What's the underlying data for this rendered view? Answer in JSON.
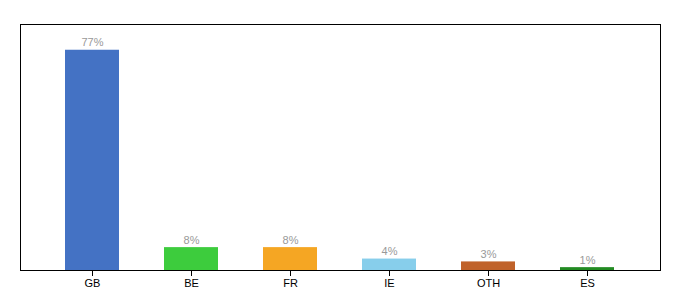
{
  "chart_data": {
    "type": "bar",
    "categories": [
      "GB",
      "BE",
      "FR",
      "IE",
      "OTH",
      "ES"
    ],
    "values": [
      77,
      8,
      8,
      4,
      3,
      1
    ],
    "value_labels": [
      "77%",
      "8%",
      "8%",
      "4%",
      "3%",
      "1%"
    ],
    "data_labels": true,
    "colors": [
      "#4472c4",
      "#3dcc3d",
      "#f5a623",
      "#87ceeb",
      "#c0622a",
      "#228B22"
    ],
    "ylim": [
      0,
      86
    ],
    "grid": false,
    "tick_labels": "x"
  }
}
